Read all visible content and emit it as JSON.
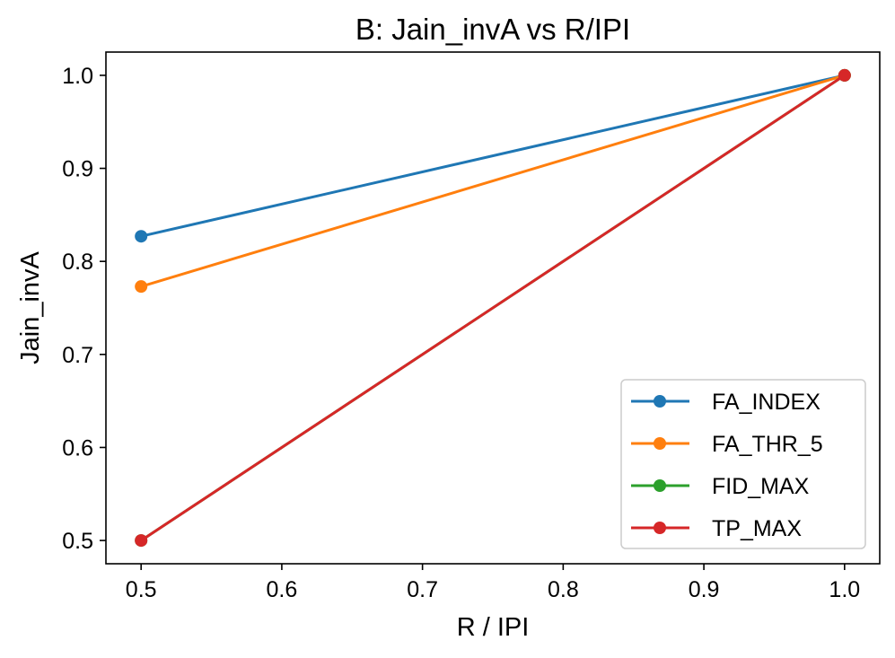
{
  "chart_data": {
    "type": "line",
    "title": "B: Jain_invA vs R/IPI",
    "xlabel": "R / IPI",
    "ylabel": "Jain_invA",
    "xlim": [
      0.475,
      1.025
    ],
    "ylim": [
      0.475,
      1.025
    ],
    "xticks": [
      0.5,
      0.6,
      0.7,
      0.8,
      0.9,
      1.0
    ],
    "yticks": [
      0.5,
      0.6,
      0.7,
      0.8,
      0.9,
      1.0
    ],
    "xtick_labels": [
      "0.5",
      "0.6",
      "0.7",
      "0.8",
      "0.9",
      "1.0"
    ],
    "ytick_labels": [
      "0.5",
      "0.6",
      "0.7",
      "0.8",
      "0.9",
      "1.0"
    ],
    "grid": false,
    "legend_position": "bottom-right",
    "x": [
      0.5,
      1.0
    ],
    "series": [
      {
        "name": "FA_INDEX",
        "color": "#1f77b4",
        "values": [
          0.827,
          1.0
        ]
      },
      {
        "name": "FA_THR_5",
        "color": "#ff7f0e",
        "values": [
          0.773,
          1.0
        ]
      },
      {
        "name": "FID_MAX",
        "color": "#2ca02c",
        "values": [
          0.5,
          1.0
        ]
      },
      {
        "name": "TP_MAX",
        "color": "#d62728",
        "values": [
          0.5,
          1.0
        ]
      }
    ]
  }
}
